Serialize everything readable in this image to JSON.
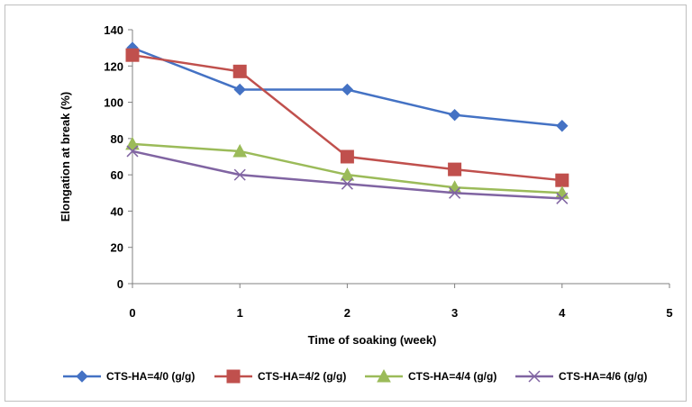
{
  "chart_data": {
    "type": "line",
    "title": "",
    "xlabel": "Time of soaking (week)",
    "ylabel": "Elongation at break (%)",
    "xlim": [
      0,
      5
    ],
    "ylim": [
      0,
      140
    ],
    "x_ticks": [
      "0",
      "1",
      "2",
      "3",
      "4",
      "5"
    ],
    "y_ticks": [
      "0",
      "20",
      "40",
      "60",
      "80",
      "100",
      "120",
      "140"
    ],
    "grid": false,
    "legend_position": "bottom",
    "x": [
      0,
      1,
      2,
      3,
      4
    ],
    "series": [
      {
        "name": "CTS-HA=4/0 (g/g)",
        "color": "#4472c4",
        "marker": "diamond",
        "values": [
          130,
          107,
          107,
          93,
          87
        ]
      },
      {
        "name": "CTS-HA=4/2 (g/g)",
        "color": "#c0504d",
        "marker": "square",
        "values": [
          126,
          117,
          70,
          63,
          57
        ]
      },
      {
        "name": "CTS-HA=4/4 (g/g)",
        "color": "#9bbb59",
        "marker": "triangle",
        "values": [
          77,
          73,
          60,
          53,
          50
        ]
      },
      {
        "name": "CTS-HA=4/6 (g/g)",
        "color": "#8064a2",
        "marker": "x",
        "values": [
          73,
          60,
          55,
          50,
          47
        ]
      }
    ]
  }
}
